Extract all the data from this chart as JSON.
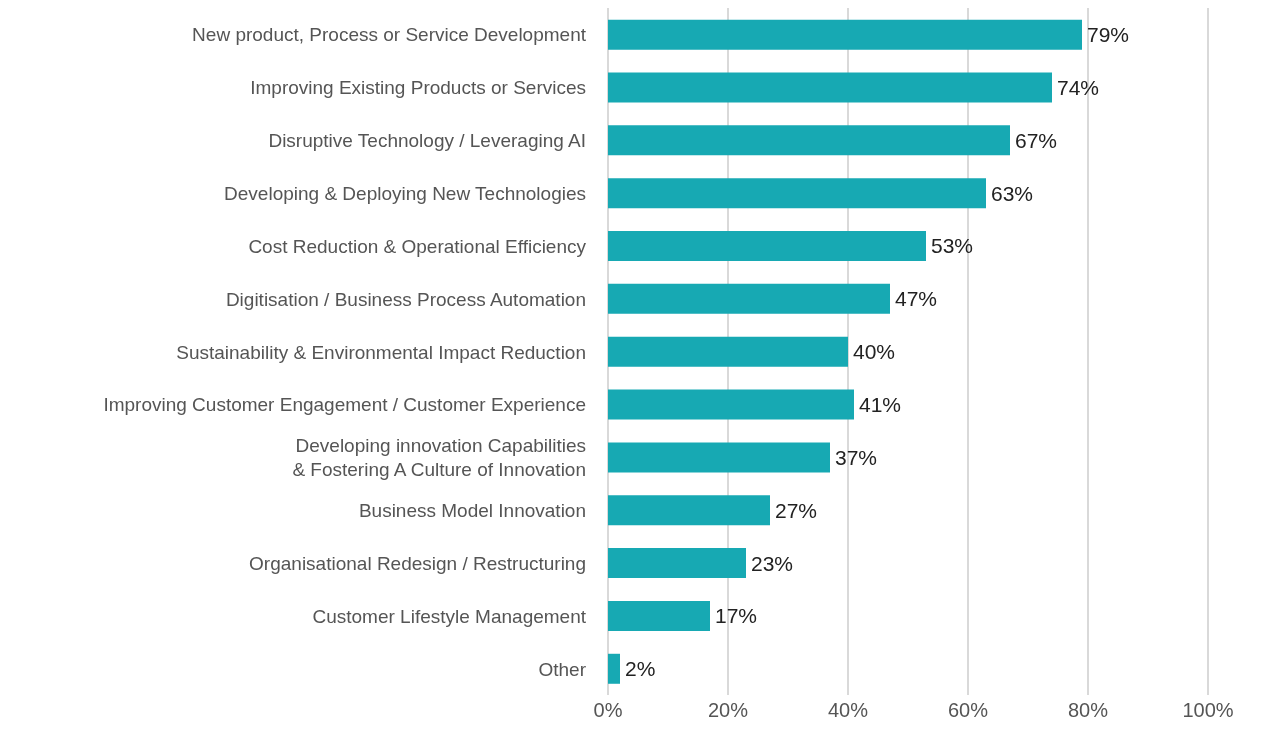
{
  "chart_data": {
    "type": "bar",
    "orientation": "horizontal",
    "categories": [
      "New product, Process or Service Development",
      "Improving Existing Products or Services",
      "Disruptive Technology / Leveraging AI",
      "Developing & Deploying New Technologies",
      "Cost Reduction & Operational Efficiency",
      "Digitisation / Business Process Automation",
      "Sustainability & Environmental Impact Reduction",
      "Improving Customer Engagement / Customer Experience",
      "Developing innovation Capabilities\n& Fostering A Culture of Innovation",
      "Business Model Innovation",
      "Organisational Redesign / Restructuring",
      "Customer Lifestyle Management",
      "Other"
    ],
    "values": [
      79,
      74,
      67,
      63,
      53,
      47,
      40,
      41,
      37,
      27,
      23,
      17,
      2
    ],
    "value_labels": [
      "79%",
      "74%",
      "67%",
      "63%",
      "53%",
      "47%",
      "40%",
      "41%",
      "37%",
      "27%",
      "23%",
      "17%",
      "2%"
    ],
    "color": "#17a9b3",
    "xlim": [
      0,
      100
    ],
    "xticks": [
      {
        "value": 0,
        "label": "0%"
      },
      {
        "value": 20,
        "label": "20%"
      },
      {
        "value": 40,
        "label": "40%"
      },
      {
        "value": 60,
        "label": "60%"
      },
      {
        "value": 80,
        "label": "80%"
      },
      {
        "value": 100,
        "label": "100%"
      }
    ],
    "grid": "x"
  }
}
